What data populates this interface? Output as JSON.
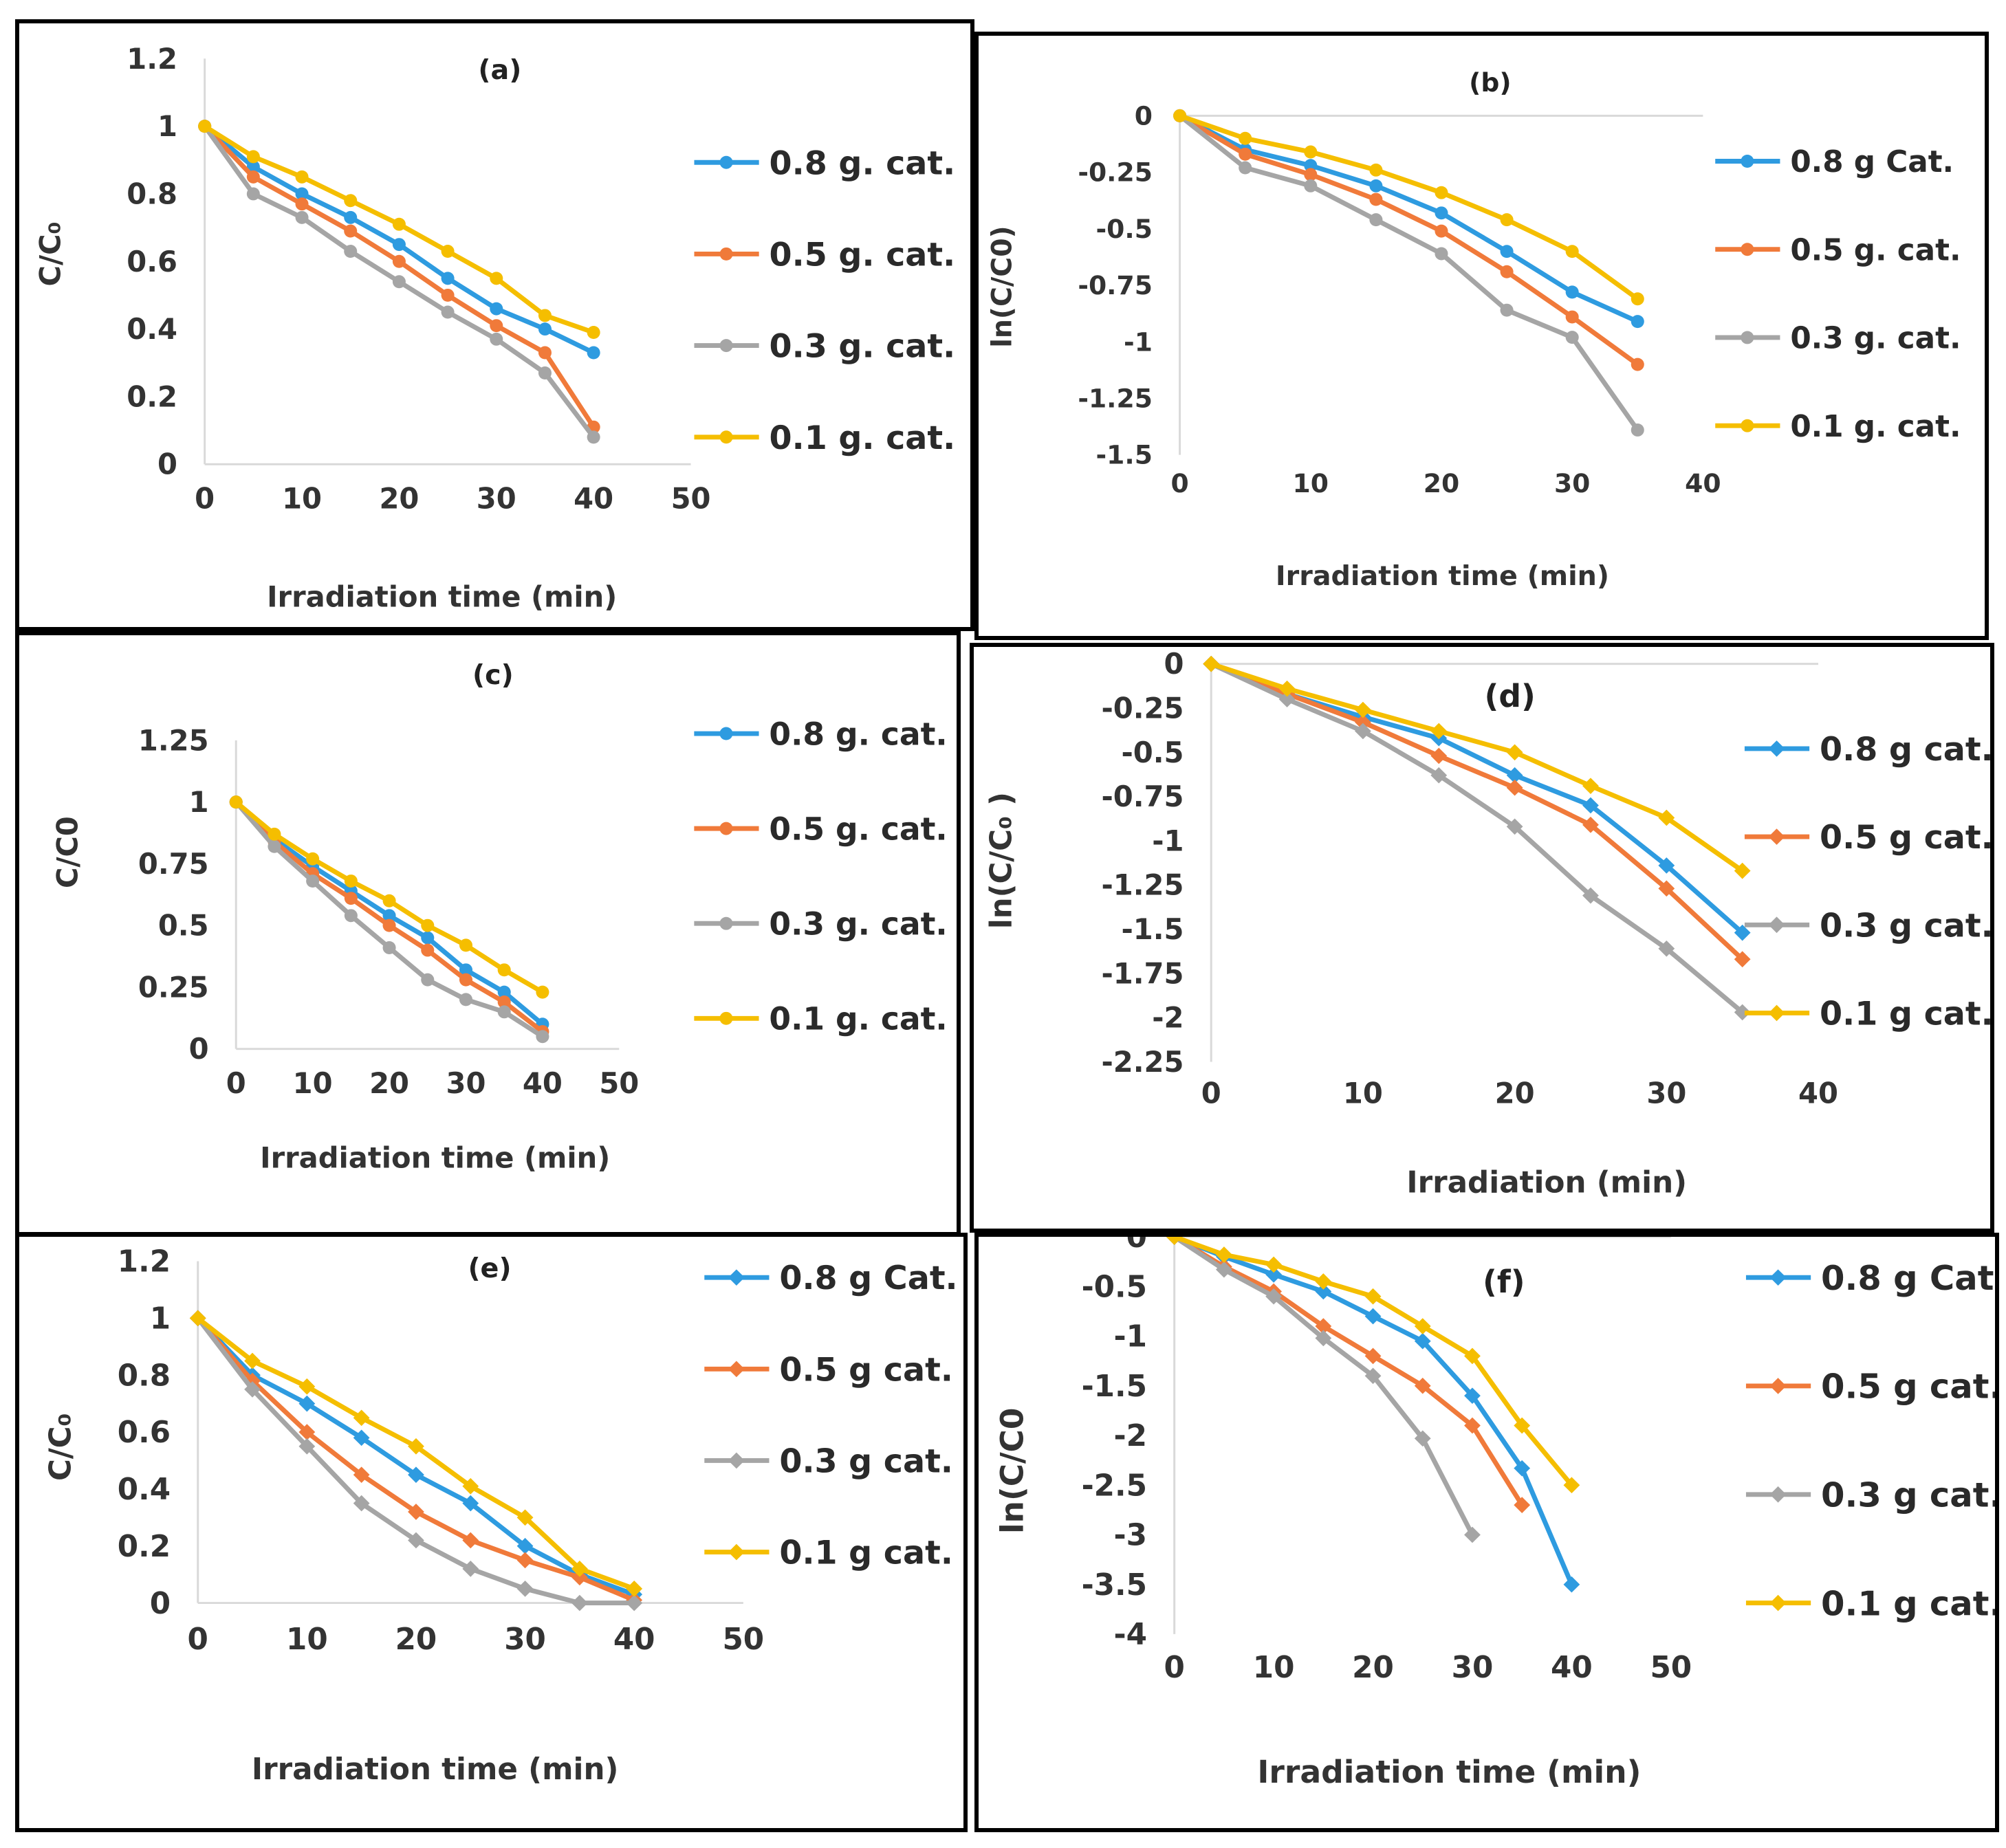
{
  "chart_data": [
    {
      "type": "line",
      "panel_label": "(a)",
      "xlabel": "Irradiation time (min)",
      "ylabel": "C/C₀",
      "xlim": [
        0,
        50
      ],
      "ylim": [
        0,
        1.2
      ],
      "xticks": [
        0,
        10,
        20,
        30,
        40,
        50
      ],
      "yticks": [
        0,
        0.2,
        0.4,
        0.6,
        0.8,
        1,
        1.2
      ],
      "ytick_labels": [
        "0",
        "0.2",
        "0.4",
        "0.6",
        "0.8",
        "1",
        "1.2"
      ],
      "legend": "right",
      "x": [
        0,
        5,
        10,
        15,
        20,
        25,
        30,
        35,
        40
      ],
      "series": [
        {
          "name": "0.8 g. cat.",
          "color": "#2e9be0",
          "values": [
            1,
            0.88,
            0.8,
            0.73,
            0.65,
            0.55,
            0.46,
            0.4,
            0.33
          ]
        },
        {
          "name": "0.5 g. cat.",
          "color": "#f07a3a",
          "values": [
            1,
            0.85,
            0.77,
            0.69,
            0.6,
            0.5,
            0.41,
            0.33,
            0.11
          ]
        },
        {
          "name": "0.3 g. cat.",
          "color": "#a5a5a5",
          "values": [
            1,
            0.8,
            0.73,
            0.63,
            0.54,
            0.45,
            0.37,
            0.27,
            0.08
          ]
        },
        {
          "name": "0.1 g. cat.",
          "color": "#f5be00",
          "values": [
            1,
            0.91,
            0.85,
            0.78,
            0.71,
            0.63,
            0.55,
            0.44,
            0.39
          ]
        }
      ]
    },
    {
      "type": "line",
      "panel_label": "(b)",
      "xlabel": "Irradiation time (min)",
      "ylabel": "ln(C/C0)",
      "xlim": [
        0,
        40
      ],
      "ylim": [
        -1.5,
        0
      ],
      "xticks": [
        0,
        10,
        20,
        30,
        40
      ],
      "yticks": [
        0,
        -0.25,
        -0.5,
        -0.75,
        -1,
        -1.25,
        -1.5
      ],
      "ytick_labels": [
        "0",
        "-0.25",
        "-0.5",
        "-0.75",
        "-1",
        "-1.25",
        "-1.5"
      ],
      "legend": "right",
      "x": [
        0,
        5,
        10,
        15,
        20,
        25,
        30,
        35
      ],
      "series": [
        {
          "name": "0.8 g Cat.",
          "color": "#2e9be0",
          "values": [
            0,
            -0.15,
            -0.22,
            -0.31,
            -0.43,
            -0.6,
            -0.78,
            -0.91
          ]
        },
        {
          "name": "0.5 g. cat.",
          "color": "#f07a3a",
          "values": [
            0,
            -0.17,
            -0.26,
            -0.37,
            -0.51,
            -0.69,
            -0.89,
            -1.1
          ]
        },
        {
          "name": "0.3 g. cat.",
          "color": "#a5a5a5",
          "values": [
            0,
            -0.23,
            -0.31,
            -0.46,
            -0.61,
            -0.86,
            -0.98,
            -1.39
          ]
        },
        {
          "name": "0.1 g. cat.",
          "color": "#f5be00",
          "values": [
            0,
            -0.1,
            -0.16,
            -0.24,
            -0.34,
            -0.46,
            -0.6,
            -0.81
          ]
        }
      ]
    },
    {
      "type": "line",
      "panel_label": "(c)",
      "xlabel": "Irradiation time (min)",
      "ylabel": "C/C0",
      "xlim": [
        0,
        50
      ],
      "ylim": [
        0,
        1.25
      ],
      "xticks": [
        0,
        10,
        20,
        30,
        40,
        50
      ],
      "yticks": [
        0,
        0.25,
        0.5,
        0.75,
        1,
        1.25
      ],
      "ytick_labels": [
        "0",
        "0.25",
        "0.5",
        "0.75",
        "1",
        "1.25"
      ],
      "legend": "right",
      "x": [
        0,
        5,
        10,
        15,
        20,
        25,
        30,
        35,
        40
      ],
      "series": [
        {
          "name": "0.8 g. cat.",
          "color": "#2e9be0",
          "values": [
            1,
            0.85,
            0.74,
            0.64,
            0.54,
            0.45,
            0.32,
            0.23,
            0.1
          ]
        },
        {
          "name": "0.5 g. cat.",
          "color": "#f07a3a",
          "values": [
            1,
            0.84,
            0.71,
            0.61,
            0.5,
            0.4,
            0.28,
            0.19,
            0.07
          ]
        },
        {
          "name": "0.3 g. cat.",
          "color": "#a5a5a5",
          "values": [
            1,
            0.82,
            0.68,
            0.54,
            0.41,
            0.28,
            0.2,
            0.15,
            0.05
          ]
        },
        {
          "name": "0.1 g. cat.",
          "color": "#f5be00",
          "values": [
            1,
            0.87,
            0.77,
            0.68,
            0.6,
            0.5,
            0.42,
            0.32,
            0.23
          ]
        }
      ]
    },
    {
      "type": "line",
      "panel_label": "(d)",
      "xlabel": "Irradiation (min)",
      "ylabel": "ln(C/C₀ )",
      "xlim": [
        0,
        40
      ],
      "ylim": [
        -2.25,
        0
      ],
      "xticks": [
        0,
        10,
        20,
        30,
        40
      ],
      "yticks": [
        0,
        -0.25,
        -0.5,
        -0.75,
        -1,
        -1.25,
        -1.5,
        -1.75,
        -2,
        -2.25
      ],
      "ytick_labels": [
        "0",
        "-0.25",
        "-0.5",
        "-0.75",
        "-1",
        "-1.25",
        "-1.5",
        "-1.75",
        "-2",
        "-2.25"
      ],
      "legend": "right",
      "x": [
        0,
        5,
        10,
        15,
        20,
        25,
        30,
        35
      ],
      "series": [
        {
          "name": "0.8 g cat.",
          "color": "#2e9be0",
          "values": [
            0,
            -0.17,
            -0.3,
            -0.42,
            -0.63,
            -0.8,
            -1.14,
            -1.52
          ]
        },
        {
          "name": "0.5 g cat.",
          "color": "#f07a3a",
          "values": [
            0,
            -0.17,
            -0.33,
            -0.52,
            -0.7,
            -0.91,
            -1.27,
            -1.67
          ]
        },
        {
          "name": "0.3 g cat.",
          "color": "#a5a5a5",
          "values": [
            0,
            -0.2,
            -0.38,
            -0.63,
            -0.92,
            -1.31,
            -1.61,
            -1.97
          ]
        },
        {
          "name": "0.1 g cat.",
          "color": "#f5be00",
          "values": [
            0,
            -0.14,
            -0.26,
            -0.38,
            -0.5,
            -0.69,
            -0.87,
            -1.17
          ]
        }
      ]
    },
    {
      "type": "line",
      "panel_label": "(e)",
      "xlabel": "Irradiation time (min)",
      "ylabel": "C/C₀",
      "xlim": [
        0,
        50
      ],
      "ylim": [
        0,
        1.2
      ],
      "xticks": [
        0,
        10,
        20,
        30,
        40,
        50
      ],
      "yticks": [
        0,
        0.2,
        0.4,
        0.6,
        0.8,
        1,
        1.2
      ],
      "ytick_labels": [
        "0",
        "0.2",
        "0.4",
        "0.6",
        "0.8",
        "1",
        "1.2"
      ],
      "legend": "right",
      "x": [
        0,
        5,
        10,
        15,
        20,
        25,
        30,
        35,
        40
      ],
      "series": [
        {
          "name": "0.8 g Cat.",
          "color": "#2e9be0",
          "values": [
            1,
            0.8,
            0.7,
            0.58,
            0.45,
            0.35,
            0.2,
            0.1,
            0.03
          ]
        },
        {
          "name": "0.5 g cat.",
          "color": "#f07a3a",
          "values": [
            1,
            0.78,
            0.6,
            0.45,
            0.32,
            0.22,
            0.15,
            0.09,
            0.01
          ]
        },
        {
          "name": "0.3 g cat.",
          "color": "#a5a5a5",
          "values": [
            1,
            0.75,
            0.55,
            0.35,
            0.22,
            0.12,
            0.05,
            0,
            0
          ]
        },
        {
          "name": "0.1 g cat.",
          "color": "#f5be00",
          "values": [
            1,
            0.85,
            0.76,
            0.65,
            0.55,
            0.41,
            0.3,
            0.12,
            0.05
          ]
        }
      ]
    },
    {
      "type": "line",
      "panel_label": "(f)",
      "xlabel": "Irradiation time (min)",
      "ylabel": "ln(C/C0",
      "xlim": [
        0,
        50
      ],
      "ylim": [
        -4,
        0
      ],
      "xticks": [
        0,
        10,
        20,
        30,
        40,
        50
      ],
      "yticks": [
        0,
        -0.5,
        -1,
        -1.5,
        -2,
        -2.5,
        -3,
        -3.5,
        -4
      ],
      "ytick_labels": [
        "0",
        "-0.5",
        "-1",
        "-1.5",
        "-2",
        "-2.5",
        "-3",
        "-3.5",
        "-4"
      ],
      "legend": "right",
      "x": [
        0,
        5,
        10,
        15,
        20,
        25,
        30,
        35,
        40
      ],
      "series": [
        {
          "name": "0.8 g Cat.",
          "color": "#2e9be0",
          "values": [
            0,
            -0.2,
            -0.38,
            -0.55,
            -0.8,
            -1.05,
            -1.6,
            -2.33,
            -3.5
          ]
        },
        {
          "name": "0.5 g cat.",
          "color": "#f07a3a",
          "values": [
            0,
            -0.3,
            -0.55,
            -0.9,
            -1.2,
            -1.5,
            -1.9,
            -2.7,
            null
          ]
        },
        {
          "name": "0.3 g cat.",
          "color": "#a5a5a5",
          "values": [
            0,
            -0.33,
            -0.6,
            -1.02,
            -1.4,
            -2.03,
            -3.0,
            null,
            null
          ]
        },
        {
          "name": "0.1 g cat.",
          "color": "#f5be00",
          "values": [
            0,
            -0.18,
            -0.28,
            -0.45,
            -0.6,
            -0.9,
            -1.2,
            -1.9,
            -2.5
          ]
        }
      ]
    }
  ]
}
